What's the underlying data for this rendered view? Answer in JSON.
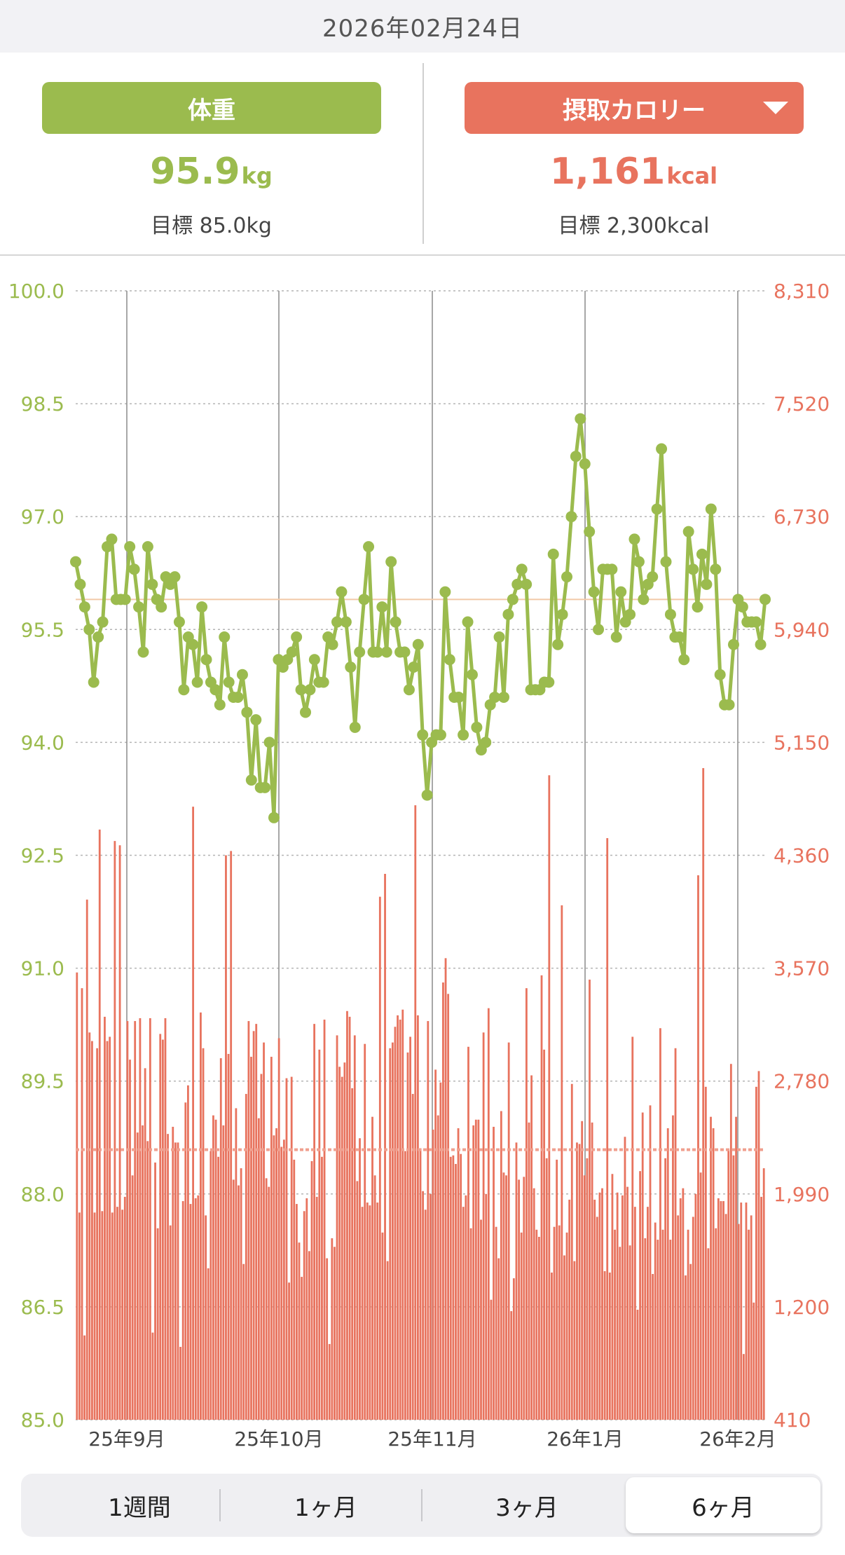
{
  "header": {
    "date": "2026年02月24日"
  },
  "summary": {
    "weight": {
      "label": "体重",
      "value": "95.9",
      "unit": "kg",
      "goal": "目標 85.0kg"
    },
    "calorie": {
      "label": "摂取カロリー",
      "value": "1,161",
      "unit": "kcal",
      "goal": "目標 2,300kcal",
      "dropdown_icon": "triangle-down-icon"
    }
  },
  "colors": {
    "weight": "#9bbb4e",
    "calorie": "#e8735e",
    "goal_line_weight": "#f2c9a8",
    "goal_line_calorie": "#f0a08f"
  },
  "segments": {
    "items": [
      "1週間",
      "1ヶ月",
      "3ヶ月",
      "6ヶ月"
    ],
    "selected_index": 3
  },
  "chart_data": {
    "type": "line",
    "x_tick_labels": [
      "25年9月",
      "25年10月",
      "25年11月",
      "26年1月",
      "26年2月"
    ],
    "left_axis": {
      "label": "",
      "range": [
        85.0,
        100.0
      ],
      "ticks": [
        "100.0",
        "98.5",
        "97.0",
        "95.5",
        "94.0",
        "92.5",
        "91.0",
        "89.5",
        "88.0",
        "86.5",
        "85.0"
      ]
    },
    "right_axis": {
      "label": "",
      "range": [
        410,
        8310
      ],
      "ticks": [
        "8,310",
        "7,520",
        "6,730",
        "5,940",
        "5,150",
        "4,360",
        "3,570",
        "2,780",
        "1,990",
        "1,200",
        "410"
      ]
    },
    "grid": true,
    "weight_goal_line": 95.9,
    "calorie_goal_line": 2300,
    "series": [
      {
        "kind": "line",
        "values": [
          96.4,
          96.1,
          95.8,
          95.5,
          94.8,
          95.4,
          95.6,
          96.6,
          96.7,
          95.9,
          95.9,
          95.9,
          96.6,
          96.3,
          95.8,
          95.2,
          96.6,
          96.1,
          95.9,
          95.8,
          96.2,
          96.1,
          96.2,
          95.6,
          94.7,
          95.4,
          95.3,
          94.8,
          95.8,
          95.1,
          94.8,
          94.7,
          94.5,
          95.4,
          94.8,
          94.6,
          94.6,
          94.9,
          94.4,
          93.5,
          94.3,
          93.4,
          93.4,
          94.0,
          93.0,
          95.1,
          95.0,
          95.1,
          95.2,
          95.4,
          94.7,
          94.4,
          94.7,
          95.1,
          94.8,
          94.8,
          95.4,
          95.3,
          95.6,
          96.0,
          95.6,
          95.0,
          94.2,
          95.2,
          95.9,
          96.6,
          95.2,
          95.2,
          95.8,
          95.2,
          96.4,
          95.6,
          95.2,
          95.2,
          94.7,
          95.0,
          95.3,
          94.1,
          93.3,
          94.0,
          94.1,
          94.1,
          96.0,
          95.1,
          94.6,
          94.6,
          94.1,
          95.6,
          94.9,
          94.2,
          93.9,
          94.0,
          94.5,
          94.6,
          95.4,
          94.6,
          95.7,
          95.9,
          96.1,
          96.3,
          96.1,
          94.7,
          94.7,
          94.7,
          94.8,
          94.8,
          96.5,
          95.3,
          95.7,
          96.2,
          97.0,
          97.8,
          98.3,
          97.7,
          96.8,
          96.0,
          95.5,
          96.3,
          96.3,
          96.3,
          95.4,
          96.0,
          95.6,
          95.7,
          96.7,
          96.4,
          95.9,
          96.1,
          96.2,
          97.1,
          97.9,
          96.4,
          95.7,
          95.4,
          95.4,
          95.1,
          96.8,
          96.3,
          95.8,
          96.5,
          96.1,
          97.1,
          96.3,
          94.9,
          94.5,
          94.5,
          95.3,
          95.9,
          95.8,
          95.6,
          95.6,
          95.6,
          95.3,
          95.9
        ]
      },
      {
        "kind": "bar",
        "values": [
          3540,
          1860,
          3430,
          1000,
          4050,
          3120,
          3060,
          1860,
          3010,
          4540,
          1870,
          3230,
          3060,
          3090,
          1860,
          4460,
          1900,
          4430,
          1880,
          1970,
          3200,
          2930,
          2120,
          3200,
          2420,
          3220,
          2470,
          2870,
          2360,
          3220,
          1020,
          2210,
          1750,
          3110,
          3070,
          3220,
          2410,
          1770,
          2460,
          2350,
          2350,
          920,
          1940,
          2630,
          2750,
          1920,
          4700,
          1960,
          1980,
          3260,
          3010,
          1840,
          1470,
          2290,
          2540,
          2510,
          2250,
          2940,
          2470,
          4360,
          2970,
          4390,
          2090,
          2590,
          2050,
          2170,
          1500,
          2690,
          3200,
          2950,
          3130,
          3180,
          2520,
          2830,
          3050,
          2100,
          2040,
          2950,
          2400,
          2450,
          3080,
          2320,
          2370,
          2800,
          1370,
          2810,
          2230,
          1920,
          1650,
          1410,
          1870,
          1960,
          1590,
          2220,
          3180,
          1970,
          3000,
          2250,
          3210,
          1540,
          940,
          1680,
          1620,
          3100,
          2880,
          2810,
          2910,
          3270,
          3230,
          2730,
          3100,
          2080,
          2380,
          1900,
          3040,
          1930,
          1910,
          2530,
          2120,
          1930,
          4070,
          1720,
          4230,
          1520,
          3010,
          3050,
          3160,
          3240,
          3210,
          3280,
          2290,
          2980,
          3090,
          2690,
          4710,
          3240,
          2310,
          2010,
          1880,
          3200,
          1990,
          2440,
          2860,
          2540,
          2770,
          3470,
          3640,
          3390,
          2250,
          2260,
          2200,
          2450,
          2270,
          1900,
          1980,
          3020,
          1750,
          2470,
          2510,
          2510,
          1810,
          3120,
          1990,
          3290,
          1250,
          2460,
          1760,
          1540,
          2570,
          2140,
          2120,
          3050,
          1170,
          1400,
          2350,
          2090,
          1720,
          2110,
          3430,
          2490,
          2820,
          2030,
          1740,
          1690,
          3520,
          3000,
          2240,
          4920,
          1440,
          1760,
          2230,
          1770,
          4010,
          1560,
          1720,
          1950,
          2760,
          1520,
          2350,
          2340,
          2500,
          2120,
          2240,
          3490,
          2490,
          1950,
          1830,
          2000,
          2030,
          1450,
          4480,
          1440,
          2130,
          1740,
          2000,
          1620,
          1980,
          2390,
          2040,
          1630,
          3090,
          1900,
          1180,
          2150,
          2560,
          1680,
          1900,
          2610,
          1430,
          1790,
          1670,
          3150,
          1740,
          2240,
          2450,
          1670,
          2540,
          3010,
          1840,
          1960,
          2030,
          1420,
          1740,
          1500,
          1830,
          1990,
          4220,
          2140,
          4970,
          2740,
          1610,
          2530,
          2450,
          1750,
          1960,
          1940,
          1940,
          1850,
          2300,
          2900,
          2260,
          2530,
          1780,
          1930,
          870,
          1930,
          1740,
          1840,
          1230,
          2740,
          2850,
          1970,
          2170
        ]
      }
    ]
  }
}
